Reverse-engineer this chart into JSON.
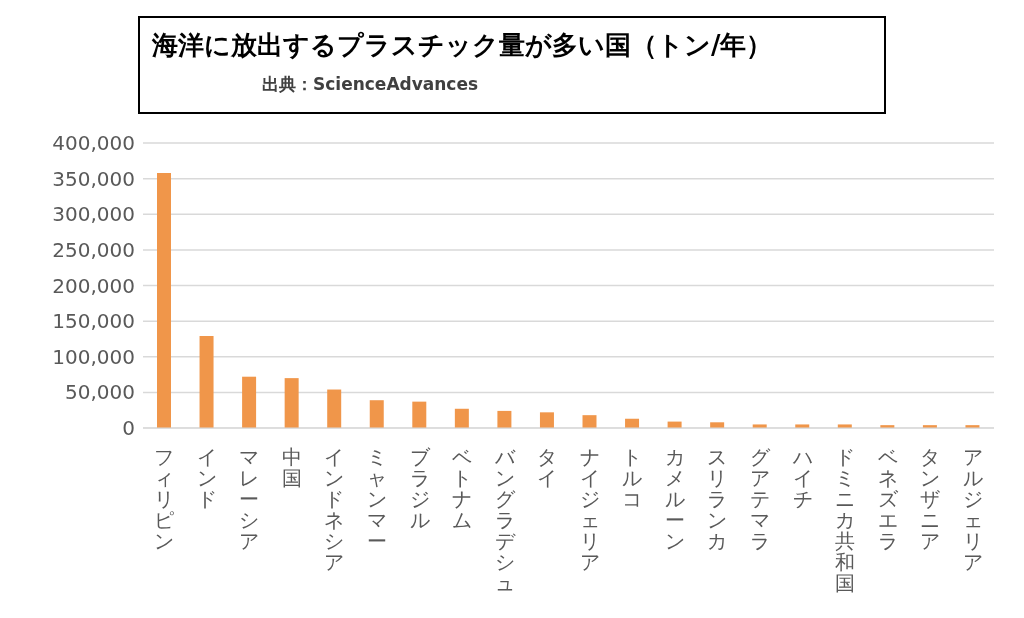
{
  "chart_data": {
    "type": "bar",
    "title": "海洋に放出するプラスチック量が多い国（トン/年）",
    "subtitle": "出典：ScienceAdvances",
    "categories": [
      "フィリピン",
      "インド",
      "マレーシア",
      "中国",
      "インドネシア",
      "ミャンマー",
      "ブラジル",
      "ベトナム",
      "バングラデシュ",
      "タイ",
      "ナイジェリア",
      "トルコ",
      "カメルーン",
      "スリランカ",
      "グアテマラ",
      "ハイチ",
      "ドミニカ共和国",
      "ベネズエラ",
      "タンザニア",
      "アルジェリア"
    ],
    "values": [
      358000,
      129000,
      72000,
      70000,
      54000,
      39000,
      37000,
      27000,
      24000,
      22000,
      18000,
      13000,
      9000,
      8000,
      5000,
      5000,
      5000,
      4000,
      4000,
      4000
    ],
    "color": "#f0964a",
    "ylim": [
      0,
      400000
    ],
    "yticks": [
      0,
      {
        "value": 50000,
        "label": "50,000"
      },
      {
        "value": 100000,
        "label": "100,000"
      },
      {
        "value": 150000,
        "label": "150,000"
      },
      {
        "value": 200000,
        "label": "200,000"
      },
      {
        "value": 250000,
        "label": "250,000"
      },
      {
        "value": 300000,
        "label": "300,000"
      },
      {
        "value": 350000,
        "label": "350,000"
      },
      {
        "value": 400000,
        "label": "400,000"
      }
    ],
    "grid": "y",
    "legend": false
  }
}
